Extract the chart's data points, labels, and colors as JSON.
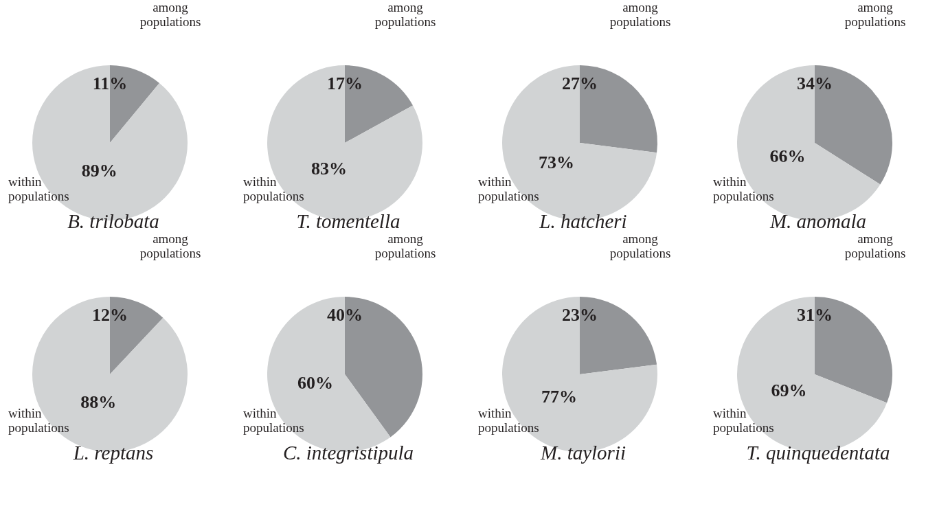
{
  "chart_data": [
    {
      "type": "pie",
      "title": "B. trilobata",
      "categories": [
        "among populations",
        "within populations"
      ],
      "values": [
        11,
        89
      ],
      "colors": [
        "#939598",
        "#d1d3d4"
      ],
      "value_labels": [
        "11%",
        "89%"
      ]
    },
    {
      "type": "pie",
      "title": "T. tomentella",
      "categories": [
        "among populations",
        "within populations"
      ],
      "values": [
        17,
        83
      ],
      "colors": [
        "#939598",
        "#d1d3d4"
      ],
      "value_labels": [
        "17%",
        "83%"
      ]
    },
    {
      "type": "pie",
      "title": "L. hatcheri",
      "categories": [
        "among populations",
        "within populations"
      ],
      "values": [
        27,
        73
      ],
      "colors": [
        "#939598",
        "#d1d3d4"
      ],
      "value_labels": [
        "27%",
        "73%"
      ]
    },
    {
      "type": "pie",
      "title": "M. anomala",
      "categories": [
        "among populations",
        "within populations"
      ],
      "values": [
        34,
        66
      ],
      "colors": [
        "#939598",
        "#d1d3d4"
      ],
      "value_labels": [
        "34%",
        "66%"
      ]
    },
    {
      "type": "pie",
      "title": "L. reptans",
      "categories": [
        "among populations",
        "within populations"
      ],
      "values": [
        12,
        88
      ],
      "colors": [
        "#939598",
        "#d1d3d4"
      ],
      "value_labels": [
        "12%",
        "88%"
      ]
    },
    {
      "type": "pie",
      "title": "C. integristipula",
      "categories": [
        "among populations",
        "within populations"
      ],
      "values": [
        40,
        60
      ],
      "colors": [
        "#939598",
        "#d1d3d4"
      ],
      "value_labels": [
        "40%",
        "60%"
      ]
    },
    {
      "type": "pie",
      "title": "M. taylorii",
      "categories": [
        "among populations",
        "within populations"
      ],
      "values": [
        23,
        77
      ],
      "colors": [
        "#939598",
        "#d1d3d4"
      ],
      "value_labels": [
        "23%",
        "77%"
      ]
    },
    {
      "type": "pie",
      "title": "T. quinquedentata",
      "categories": [
        "among populations",
        "within populations"
      ],
      "values": [
        31,
        69
      ],
      "colors": [
        "#939598",
        "#d1d3d4"
      ],
      "value_labels": [
        "31%",
        "69%"
      ]
    }
  ]
}
